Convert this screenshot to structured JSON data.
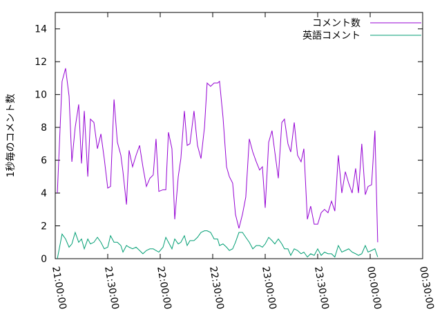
{
  "chart_data": {
    "type": "line",
    "ylabel": "1秒毎のコメント数",
    "xlim": [
      0,
      210
    ],
    "xticks": [
      {
        "value": 0,
        "label": "21:00:00"
      },
      {
        "value": 30,
        "label": "21:30:00"
      },
      {
        "value": 60,
        "label": "22:00:00"
      },
      {
        "value": 90,
        "label": "22:30:00"
      },
      {
        "value": 120,
        "label": "23:00:00"
      },
      {
        "value": 150,
        "label": "23:30:00"
      },
      {
        "value": 180,
        "label": "00:00:00"
      },
      {
        "value": 210,
        "label": "00:30:00"
      }
    ],
    "ylim": [
      0,
      15
    ],
    "yticks": [
      0,
      2,
      4,
      6,
      8,
      10,
      12,
      14
    ],
    "legend": "top-right",
    "x": [
      1.2,
      3.9,
      5.9,
      7.9,
      9.5,
      11.4,
      13.4,
      15.0,
      16.6,
      18.6,
      20.1,
      22.1,
      24.1,
      26.1,
      28.0,
      30.0,
      31.6,
      33.6,
      35.5,
      37.5,
      38.7,
      40.7,
      42.2,
      44.2,
      46.2,
      48.2,
      50.1,
      52.1,
      54.1,
      56.0,
      57.6,
      59.2,
      61.6,
      63.2,
      64.7,
      66.7,
      68.3,
      70.3,
      71.8,
      73.8,
      75.4,
      77.0,
      79.3,
      81.3,
      83.3,
      85.3,
      86.8,
      88.8,
      90.8,
      92.8,
      93.9,
      95.9,
      97.9,
      99.5,
      101.4,
      103.0,
      105.0,
      107.0,
      108.9,
      110.9,
      112.9,
      114.9,
      116.8,
      118.4,
      120.0,
      122.0,
      123.9,
      125.5,
      127.5,
      129.5,
      131.0,
      133.0,
      134.6,
      136.6,
      138.5,
      140.5,
      142.1,
      144.1,
      146.0,
      148.0,
      150.0,
      152.0,
      153.9,
      155.9,
      157.9,
      159.8,
      161.8,
      163.8,
      165.8,
      167.7,
      169.7,
      171.7,
      173.3,
      175.2,
      177.2,
      178.8,
      180.8,
      182.7,
      184.3
    ],
    "series": [
      {
        "name": "コメント数",
        "color": "#9400d3",
        "values": [
          4.0,
          10.8,
          11.6,
          9.9,
          5.9,
          8.0,
          9.4,
          5.8,
          9.0,
          5.0,
          8.5,
          8.3,
          6.7,
          7.6,
          6.1,
          4.3,
          4.4,
          9.7,
          7.1,
          6.3,
          5.3,
          3.3,
          6.6,
          5.6,
          6.3,
          6.9,
          5.6,
          4.4,
          4.9,
          5.1,
          7.3,
          4.1,
          4.2,
          4.2,
          7.7,
          6.7,
          2.4,
          5.0,
          6.1,
          9.0,
          6.9,
          7.0,
          9.0,
          6.9,
          6.1,
          8.0,
          10.7,
          10.5,
          10.7,
          10.7,
          10.8,
          8.6,
          5.6,
          5.0,
          4.6,
          2.7,
          1.85,
          2.7,
          3.75,
          7.3,
          6.5,
          5.9,
          5.4,
          5.6,
          3.1,
          7.1,
          7.8,
          6.5,
          4.9,
          8.3,
          8.5,
          7.0,
          6.5,
          8.3,
          6.3,
          5.9,
          6.7,
          2.4,
          3.2,
          2.1,
          2.1,
          2.8,
          3.0,
          2.8,
          3.5,
          2.9,
          6.3,
          4.0,
          5.3,
          4.6,
          4.0,
          5.5,
          4.0,
          7.0,
          3.9,
          4.4,
          4.5,
          7.8,
          1.0
        ]
      },
      {
        "name": "英語コメント",
        "color": "#009e73",
        "values": [
          0,
          1.5,
          1.2,
          0.7,
          0.9,
          1.6,
          1.0,
          1.2,
          0.6,
          1.2,
          0.9,
          1.0,
          1.3,
          1.0,
          0.6,
          0.7,
          1.4,
          1.0,
          1.0,
          0.8,
          0.4,
          0.8,
          0.7,
          0.6,
          0.7,
          0.5,
          0.3,
          0.5,
          0.6,
          0.6,
          0.5,
          0.4,
          0.7,
          1.3,
          1.0,
          0.6,
          1.2,
          0.9,
          1.0,
          1.4,
          0.8,
          1.1,
          1.1,
          1.3,
          1.6,
          1.7,
          1.7,
          1.6,
          1.2,
          1.2,
          0.8,
          0.9,
          0.7,
          0.5,
          0.6,
          1.0,
          1.6,
          1.6,
          1.3,
          1.0,
          0.6,
          0.8,
          0.8,
          0.7,
          0.9,
          1.3,
          1.1,
          0.9,
          1.2,
          0.9,
          0.6,
          0.6,
          0.2,
          0.6,
          0.5,
          0.3,
          0.4,
          0.1,
          0.3,
          0.2,
          0.6,
          0.2,
          0.4,
          0.3,
          0.3,
          0.1,
          0.8,
          0.4,
          0.5,
          0.6,
          0.4,
          0.3,
          0.2,
          0.3,
          0.8,
          0.4,
          0.5,
          0.6,
          0.1
        ]
      }
    ]
  }
}
